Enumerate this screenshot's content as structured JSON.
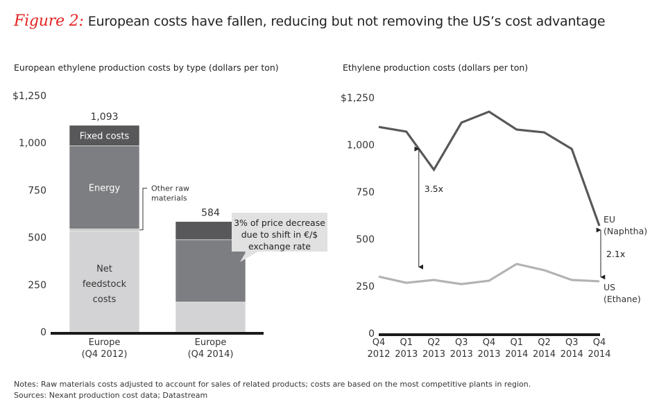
{
  "figure": {
    "label": "Figure 2:",
    "title": "European costs have fallen, reducing but not removing the US’s cost advantage",
    "label_color": "#e52222"
  },
  "notes": "Notes: Raw materials costs adjusted to account for sales of related products; costs are based on the most competitive plants in region.",
  "sources": "Sources: Nexant production cost data; Datastream",
  "chart_data": [
    {
      "type": "bar",
      "stacked": true,
      "title": "European ethylene production costs by type (dollars per ton)",
      "xlabel": "",
      "ylabel": "",
      "ylim": [
        0,
        1250
      ],
      "yticks": [
        0,
        250,
        500,
        750,
        1000,
        1250
      ],
      "ytick_labels": [
        "0",
        "250",
        "500",
        "750",
        "1,000",
        "$1,250"
      ],
      "grid": false,
      "categories": [
        [
          "Europe",
          "(Q4 2012)"
        ],
        [
          "Europe",
          "(Q4 2014)"
        ]
      ],
      "totals": [
        1093,
        584
      ],
      "total_labels": [
        "1,093",
        "584"
      ],
      "series": [
        {
          "name": "Net feedstock costs",
          "label_lines": [
            "Net",
            "feedstock",
            "costs"
          ],
          "values": [
            535,
            158
          ],
          "color": "#d3d3d5",
          "text_color": "#333333"
        },
        {
          "name": "Other raw materials",
          "label_lines": [
            "Other raw",
            "materials"
          ],
          "values": [
            10,
            0
          ],
          "color": "#bdbdbf",
          "text_color": "#333333"
        },
        {
          "name": "Energy",
          "label_lines": [
            "Energy"
          ],
          "values": [
            440,
            330
          ],
          "color": "#7d7e81",
          "text_color": "#ffffff"
        },
        {
          "name": "Fixed costs",
          "label_lines": [
            "Fixed costs"
          ],
          "values": [
            108,
            96
          ],
          "color": "#58585a",
          "text_color": "#ffffff"
        }
      ],
      "annotations": [
        {
          "text_lines": [
            "3% of price decrease",
            "due to shift in €/$",
            "exchange rate"
          ],
          "type": "callout",
          "target": "Europe (Q4 2014) Energy"
        }
      ]
    },
    {
      "type": "line",
      "title": "Ethylene production costs (dollars per ton)",
      "xlabel": "",
      "ylabel": "",
      "ylim": [
        0,
        1250
      ],
      "yticks": [
        0,
        250,
        500,
        750,
        1000,
        1250
      ],
      "ytick_labels": [
        "0",
        "250",
        "500",
        "750",
        "1,000",
        "$1,250"
      ],
      "grid": false,
      "x": [
        [
          "Q4",
          "2012"
        ],
        [
          "Q1",
          "2013"
        ],
        [
          "Q2",
          "2013"
        ],
        [
          "Q3",
          "2013"
        ],
        [
          "Q4",
          "2013"
        ],
        [
          "Q1",
          "2014"
        ],
        [
          "Q2",
          "2014"
        ],
        [
          "Q3",
          "2014"
        ],
        [
          "Q4",
          "2014"
        ]
      ],
      "series": [
        {
          "name": "EU (Naphtha)",
          "label_lines": [
            "EU",
            "(Naphtha)"
          ],
          "values": [
            1095,
            1070,
            868,
            1118,
            1176,
            1081,
            1066,
            978,
            570
          ],
          "color": "#58585a"
        },
        {
          "name": "US (Ethane)",
          "label_lines": [
            "US",
            "(Ethane)"
          ],
          "values": [
            301,
            268,
            283,
            261,
            279,
            368,
            335,
            283,
            276
          ],
          "color": "#b3b3b5"
        }
      ],
      "annotations": [
        {
          "text": "3.5x",
          "type": "double-arrow",
          "x_index": 1,
          "from": 1000,
          "to": 330
        },
        {
          "text": "2.1x",
          "type": "double-arrow",
          "x_index": 8,
          "from": 570,
          "to": 276
        }
      ]
    }
  ]
}
